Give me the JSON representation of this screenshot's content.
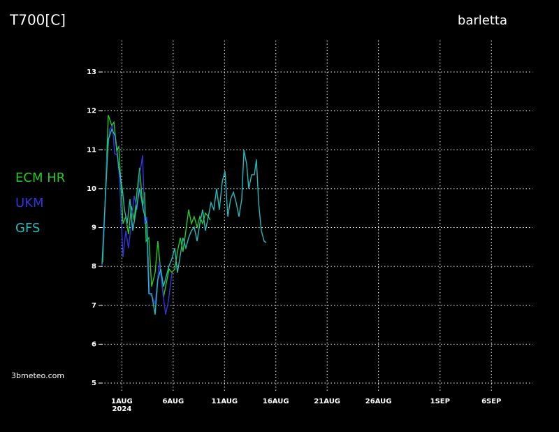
{
  "chart_data": {
    "type": "line",
    "title": "T700[C]",
    "location": "barletta",
    "source": "3bmeteo.com",
    "year_label": "2024",
    "xlim": [
      -1,
      41
    ],
    "ylim": [
      5,
      13
    ],
    "yticks": [
      5,
      6,
      7,
      8,
      9,
      10,
      11,
      12,
      13
    ],
    "xticks": [
      {
        "value": 1,
        "label": "1AUG"
      },
      {
        "value": 6,
        "label": "6AUG"
      },
      {
        "value": 11,
        "label": "11AUG"
      },
      {
        "value": 16,
        "label": "16AUG"
      },
      {
        "value": 21,
        "label": "21AUG"
      },
      {
        "value": 26,
        "label": "26AUG"
      },
      {
        "value": 32,
        "label": "1SEP"
      },
      {
        "value": 37,
        "label": "6SEP"
      }
    ],
    "grid": true,
    "series": [
      {
        "name": "ECM HR",
        "color": "#22cc22",
        "x": [
          -0.86,
          -0.66,
          -0.32,
          0.02,
          0.23,
          0.5,
          0.7,
          0.91,
          1.11,
          1.38,
          1.65,
          1.93,
          2.2,
          2.47,
          2.74,
          3.02,
          3.22,
          3.36,
          3.63,
          3.9,
          4.24,
          4.51,
          4.79,
          5.06,
          5.33,
          5.6,
          5.88,
          6.15,
          6.42,
          6.69,
          6.96,
          7.24,
          7.51,
          7.78,
          8.05,
          8.33,
          8.6,
          8.87,
          9.14,
          9.42,
          9.62
        ],
        "values": [
          8.11,
          9.46,
          11.89,
          11.62,
          11.71,
          10.99,
          11.08,
          10.09,
          9.1,
          9.28,
          8.83,
          9.55,
          9.19,
          9.91,
          10.54,
          9.55,
          9.91,
          8.65,
          8.74,
          7.48,
          7.84,
          8.65,
          7.84,
          7.21,
          7.57,
          7.93,
          7.84,
          7.93,
          8.38,
          8.74,
          8.38,
          8.92,
          9.46,
          9.1,
          9.28,
          9.01,
          9.28,
          9.1,
          9.37,
          9.28,
          9.19
        ]
      },
      {
        "name": "UKM",
        "color": "#3333dd",
        "x": [
          -0.93,
          -0.73,
          -0.46,
          -0.18,
          0.09,
          0.29,
          0.57,
          0.77,
          1.11,
          1.38,
          1.65,
          1.93,
          2.2,
          2.47,
          2.74,
          3.02,
          3.22,
          3.43,
          3.7,
          3.97,
          4.24,
          4.65,
          4.92,
          5.26,
          5.54,
          5.88
        ],
        "values": [
          8.02,
          8.92,
          10.72,
          11.53,
          11.62,
          10.9,
          10.86,
          10.27,
          8.24,
          8.92,
          8.47,
          9.1,
          9.82,
          9.46,
          10.36,
          10.86,
          9.1,
          9.28,
          7.3,
          7.21,
          7.03,
          8.11,
          7.48,
          6.76,
          7.12,
          7.84
        ]
      },
      {
        "name": "GFS",
        "color": "#22bbbb",
        "x": [
          -0.93,
          -0.32,
          0.02,
          0.36,
          0.7,
          1.04,
          1.25,
          1.52,
          1.79,
          2.06,
          2.4,
          2.74,
          3.08,
          3.43,
          3.63,
          3.9,
          4.24,
          4.51,
          4.79,
          5.06,
          5.33,
          5.6,
          5.88,
          6.15,
          6.42,
          6.69,
          6.96,
          7.24,
          7.51,
          7.78,
          8.05,
          8.33,
          8.6,
          8.87,
          9.14,
          9.42,
          9.69,
          9.96,
          10.23,
          10.5,
          10.78,
          11.05,
          11.32,
          11.59,
          11.87,
          12.14,
          12.41,
          12.68,
          12.89,
          13.16,
          13.36,
          13.64,
          13.91,
          14.11,
          14.32,
          14.59,
          14.86,
          15.07
        ],
        "values": [
          8.06,
          11.26,
          11.53,
          11.35,
          10.54,
          10.0,
          9.46,
          9.1,
          9.73,
          8.92,
          9.46,
          10.0,
          9.46,
          9.1,
          7.3,
          7.3,
          6.76,
          7.66,
          7.93,
          7.48,
          7.75,
          8.02,
          8.2,
          8.47,
          7.84,
          8.29,
          8.74,
          8.47,
          8.74,
          8.92,
          9.01,
          8.65,
          9.1,
          9.46,
          8.92,
          9.28,
          9.64,
          9.46,
          10.0,
          9.46,
          10.18,
          10.45,
          9.28,
          9.73,
          9.91,
          9.64,
          9.28,
          9.73,
          10.99,
          10.63,
          10.0,
          10.36,
          10.36,
          10.75,
          9.64,
          8.92,
          8.65,
          8.61
        ]
      }
    ]
  }
}
